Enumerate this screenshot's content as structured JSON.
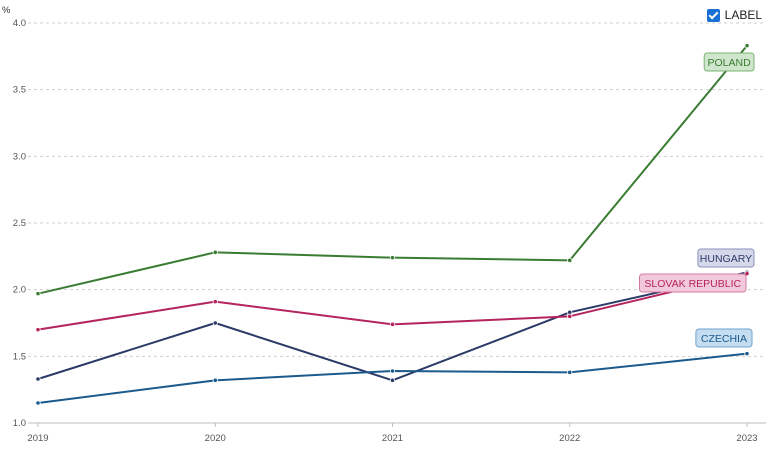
{
  "label_toggle": {
    "text": "LABEL",
    "checked": true
  },
  "chart_data": {
    "type": "line",
    "ylabel": "%",
    "ylim": [
      1.0,
      4.0
    ],
    "yticks": [
      "1.0",
      "1.5",
      "2.0",
      "2.5",
      "3.0",
      "3.5",
      "4.0"
    ],
    "x": [
      "2019",
      "2020",
      "2021",
      "2022",
      "2023"
    ],
    "grid": true,
    "series": [
      {
        "name": "POLAND",
        "color": "#3a7d32",
        "tag_bg": "#cfe6cc",
        "tag_border": "#7bb373",
        "values": [
          1.97,
          2.28,
          2.24,
          2.22,
          3.83
        ]
      },
      {
        "name": "HUNGARY",
        "color": "#2b3a67",
        "tag_bg": "#d5d8ea",
        "tag_border": "#8a90b8",
        "values": [
          1.33,
          1.75,
          1.32,
          1.83,
          2.13
        ]
      },
      {
        "name": "SLOVAK REPUBLIC",
        "color": "#b5245e",
        "tag_bg": "#f2c9dc",
        "tag_border": "#d67aa3",
        "values": [
          1.7,
          1.91,
          1.74,
          1.8,
          2.12
        ]
      },
      {
        "name": "CZECHIA",
        "color": "#1b5a8c",
        "tag_bg": "#c4ddf0",
        "tag_border": "#6fa3cf",
        "values": [
          1.15,
          1.32,
          1.39,
          1.38,
          1.52
        ]
      }
    ]
  }
}
